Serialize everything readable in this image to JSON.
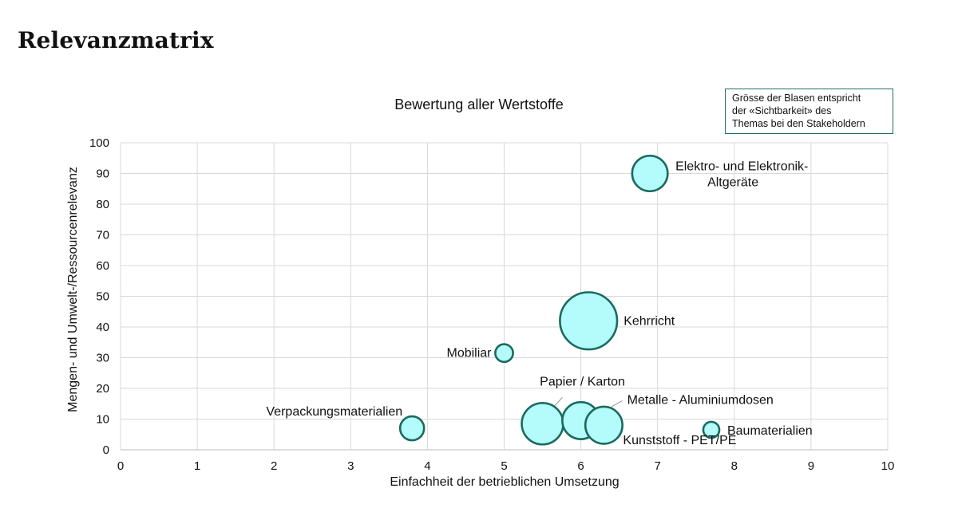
{
  "page": {
    "title": "Relevanzmatrix"
  },
  "legend_note": {
    "lines": [
      "Grösse der Blasen entspricht",
      "der «Sichtbarkeit» des",
      "Themas bei den Stakeholdern"
    ]
  },
  "colors": {
    "bubble_fill": "#b4fbfb",
    "bubble_stroke": "#1a6b5e",
    "grid": "#d9d9d9"
  },
  "chart_data": {
    "type": "scatter",
    "title": "Bewertung  aller  Wertstoffe",
    "xlabel": "Einfachheit der betrieblichen Umsetzung",
    "ylabel": "Mengen- und Umwelt-/Ressourcenrelevanz",
    "xlim": [
      0,
      10
    ],
    "ylim": [
      0,
      100
    ],
    "xticks": [
      0,
      1,
      2,
      3,
      4,
      5,
      6,
      7,
      8,
      9,
      10
    ],
    "yticks": [
      0,
      10,
      20,
      30,
      40,
      50,
      60,
      70,
      80,
      90,
      100
    ],
    "grid": true,
    "points": [
      {
        "label": "Elektro- und Elektronik-\nAltgeräte",
        "x": 6.9,
        "y": 90,
        "size": 2.2
      },
      {
        "label": "Kehrricht",
        "x": 6.1,
        "y": 42,
        "size": 5.7
      },
      {
        "label": "Mobiliar",
        "x": 5.0,
        "y": 31.5,
        "size": 0.55
      },
      {
        "label": "Papier / Karton",
        "x": 5.5,
        "y": 8.5,
        "size": 3.0
      },
      {
        "label": "Metalle - Aluminiumdosen",
        "x": 6.0,
        "y": 9.5,
        "size": 2.4
      },
      {
        "label": "Kunststoff - PET/PE",
        "x": 6.3,
        "y": 8.0,
        "size": 2.4
      },
      {
        "label": "Verpackungsmaterialien",
        "x": 3.8,
        "y": 7.0,
        "size": 1.0
      },
      {
        "label": "Baumaterialien",
        "x": 7.7,
        "y": 6.5,
        "size": 0.45
      }
    ]
  }
}
